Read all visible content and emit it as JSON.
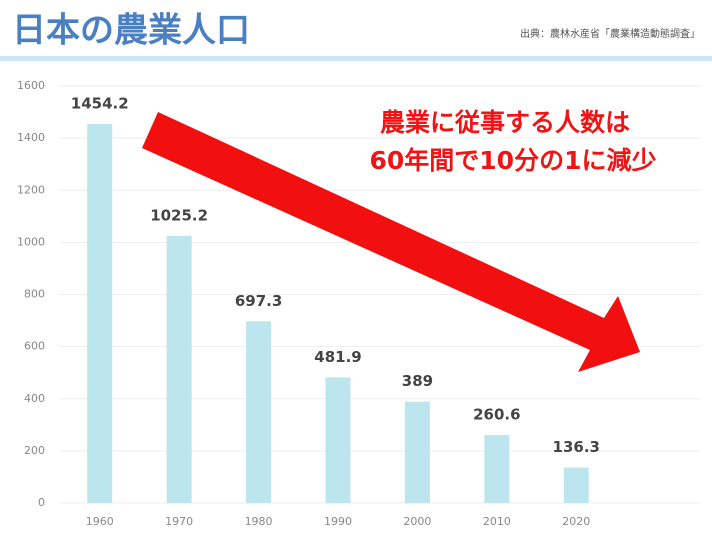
{
  "chart_data": {
    "type": "bar",
    "title": "日本の農業人口",
    "source": "出典：農林水産省「農業構造動態調査」",
    "annotation": [
      "農業に従事する人数は",
      "60年間で10分の1に減少"
    ],
    "categories": [
      "1960",
      "1970",
      "1980",
      "1990",
      "2000",
      "2010",
      "2020"
    ],
    "values": [
      1454.2,
      1025.2,
      697.3,
      481.9,
      389,
      260.6,
      136.3
    ],
    "color": "#bde5ee",
    "ylim": [
      0,
      1600
    ],
    "yticks": [
      0,
      200,
      400,
      600,
      800,
      1000,
      1200,
      1400,
      1600
    ],
    "grid": true
  }
}
